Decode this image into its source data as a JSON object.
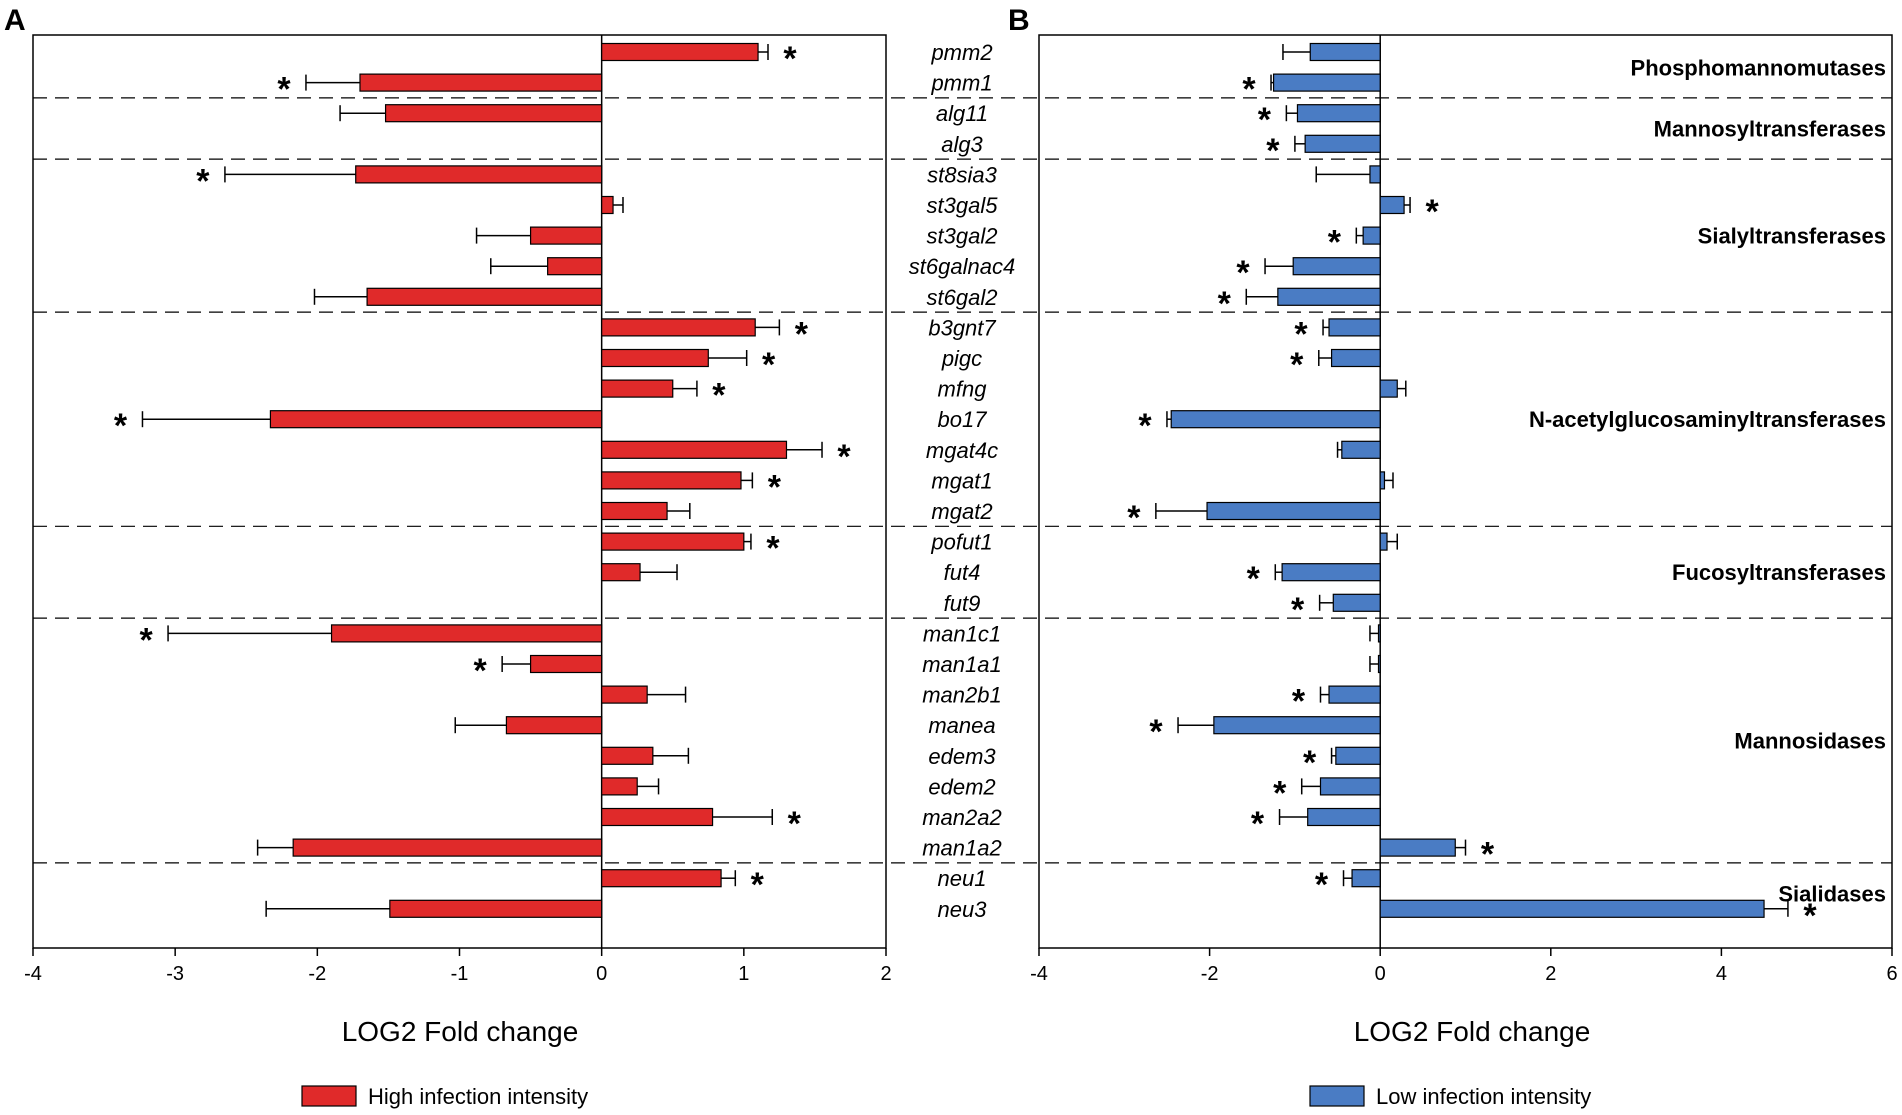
{
  "chart_data": [
    {
      "type": "bar",
      "orientation": "horizontal",
      "panel": "A",
      "title": "",
      "xlabel": "LOG2 Fold change",
      "xlim": [
        -4,
        2
      ],
      "xticks": [
        -4,
        -3,
        -2,
        -1,
        0,
        1,
        2
      ],
      "legend": "High infection intensity",
      "legend_position": "bottom-center",
      "bar_color": "#e02a2a",
      "categories": [
        "pmm2",
        "pmm1",
        "alg11",
        "alg3",
        "st8sia3",
        "st3gal5",
        "st3gal2",
        "st6galnac4",
        "st6gal2",
        "b3gnt7",
        "pigc",
        "mfng",
        "bo17",
        "mgat4c",
        "mgat1",
        "mgat2",
        "pofut1",
        "fut4",
        "fut9",
        "man1c1",
        "man1a1",
        "man2b1",
        "manea",
        "edem3",
        "edem2",
        "man2a2",
        "man1a2",
        "neu1",
        "neu3"
      ],
      "values": [
        1.1,
        -1.7,
        -1.52,
        null,
        -1.73,
        0.08,
        -0.5,
        -0.38,
        -1.65,
        1.08,
        0.75,
        0.5,
        -2.33,
        1.3,
        0.98,
        0.46,
        1.0,
        0.27,
        null,
        -1.9,
        -0.5,
        0.32,
        -0.67,
        0.36,
        0.25,
        0.78,
        -2.17,
        0.84,
        -1.49
      ],
      "errors": [
        0.07,
        0.38,
        0.32,
        null,
        0.92,
        0.07,
        0.38,
        0.4,
        0.37,
        0.17,
        0.27,
        0.17,
        0.9,
        0.25,
        0.08,
        0.16,
        0.05,
        0.26,
        null,
        1.15,
        0.2,
        0.27,
        0.36,
        0.25,
        0.15,
        0.42,
        0.25,
        0.1,
        0.87
      ],
      "significant": [
        true,
        true,
        false,
        false,
        true,
        false,
        false,
        false,
        false,
        true,
        true,
        true,
        true,
        true,
        true,
        false,
        true,
        false,
        false,
        true,
        true,
        false,
        false,
        false,
        false,
        true,
        false,
        true,
        false
      ]
    },
    {
      "type": "bar",
      "orientation": "horizontal",
      "panel": "B",
      "title": "",
      "xlabel": "LOG2 Fold change",
      "xlim": [
        -4,
        6
      ],
      "xticks": [
        -4,
        -2,
        0,
        2,
        4,
        6
      ],
      "legend": "Low infection intensity",
      "legend_position": "bottom-center",
      "bar_color": "#4a7cc4",
      "categories": [
        "pmm2",
        "pmm1",
        "alg11",
        "alg3",
        "st8sia3",
        "st3gal5",
        "st3gal2",
        "st6galnac4",
        "st6gal2",
        "b3gnt7",
        "pigc",
        "mfng",
        "bo17",
        "mgat4c",
        "mgat1",
        "mgat2",
        "pofut1",
        "fut4",
        "fut9",
        "man1c1",
        "man1a1",
        "man2b1",
        "manea",
        "edem3",
        "edem2",
        "man2a2",
        "man1a2",
        "neu1",
        "neu3"
      ],
      "values": [
        -0.82,
        -1.25,
        -0.97,
        -0.88,
        -0.12,
        0.28,
        -0.2,
        -1.02,
        -1.2,
        -0.6,
        -0.57,
        0.2,
        -2.45,
        -0.45,
        0.05,
        -2.03,
        0.08,
        -1.15,
        -0.55,
        -0.02,
        -0.02,
        -0.6,
        -1.95,
        -0.52,
        -0.7,
        -0.85,
        0.88,
        -0.33,
        4.5
      ],
      "errors": [
        0.32,
        0.03,
        0.13,
        0.12,
        0.63,
        0.07,
        0.08,
        0.33,
        0.37,
        0.07,
        0.15,
        0.1,
        0.05,
        0.05,
        0.1,
        0.6,
        0.12,
        0.08,
        0.16,
        0.1,
        0.1,
        0.1,
        0.42,
        0.05,
        0.22,
        0.33,
        0.12,
        0.1,
        0.28
      ],
      "significant": [
        false,
        true,
        true,
        true,
        false,
        true,
        true,
        true,
        true,
        true,
        true,
        false,
        true,
        false,
        false,
        true,
        false,
        true,
        true,
        false,
        false,
        true,
        true,
        true,
        true,
        true,
        true,
        true,
        true
      ]
    }
  ],
  "groups": [
    {
      "name": "Phosphomannomutases",
      "start": 0,
      "end": 1
    },
    {
      "name": "Mannosyltransferases",
      "start": 2,
      "end": 3
    },
    {
      "name": "Sialyltransferases",
      "start": 4,
      "end": 8
    },
    {
      "name": "N-acetylglucosaminyltransferases",
      "start": 9,
      "end": 15
    },
    {
      "name": "Fucosyltransferases",
      "start": 16,
      "end": 18
    },
    {
      "name": "Mannosidases",
      "start": 19,
      "end": 26
    },
    {
      "name": "Sialidases",
      "start": 27,
      "end": 28
    }
  ],
  "panel_labels": {
    "a": "A",
    "b": "B"
  },
  "significance_marker": "*",
  "colors": {
    "red": "#e02a2a",
    "blue": "#4a7cc4",
    "axis": "#000000"
  }
}
